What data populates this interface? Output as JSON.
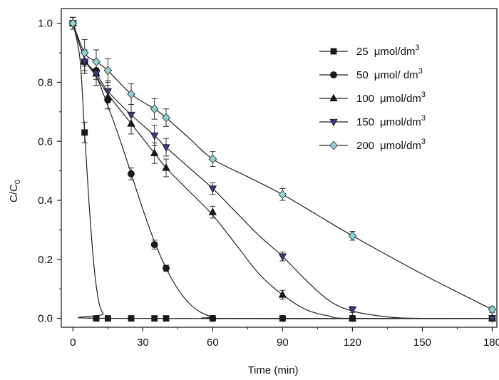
{
  "chart_data": {
    "type": "line",
    "xlabel": "Time (min)",
    "ylabel": {
      "main": "C/C",
      "sub": "0"
    },
    "xlim": [
      -5,
      182
    ],
    "ylim": [
      -0.03,
      1.05
    ],
    "x_ticks": [
      "0",
      "30",
      "60",
      "90",
      "120",
      "150",
      "180"
    ],
    "y_ticks": [
      "0.0",
      "0.2",
      "0.4",
      "0.6",
      "0.8",
      "1.0"
    ],
    "grid": false,
    "legend_position": "top-right",
    "series": [
      {
        "name": "25",
        "unit": "μmol/dm",
        "sup": "3",
        "marker": "square",
        "color": "#1a1a1a",
        "points": [
          [
            0,
            1.0
          ],
          [
            5,
            0.63
          ],
          [
            10,
            0.0
          ],
          [
            15,
            0.0
          ],
          [
            25,
            0.0
          ],
          [
            35,
            0.0
          ],
          [
            40,
            0.0
          ],
          [
            60,
            0.0
          ],
          [
            90,
            0.0
          ],
          [
            120,
            0.0
          ],
          [
            180,
            0.0
          ]
        ],
        "errors": [
          0.02,
          0.035,
          0.0,
          0.0,
          0.0,
          0.0,
          0.0,
          0.0,
          0.0,
          0.0,
          0.0
        ],
        "curve": [
          [
            0,
            1.0
          ],
          [
            3,
            0.88
          ],
          [
            5,
            0.63
          ],
          [
            7,
            0.38
          ],
          [
            9,
            0.18
          ],
          [
            11,
            0.06
          ],
          [
            13,
            0.015
          ],
          [
            15,
            0.0
          ],
          [
            180,
            0.0
          ]
        ]
      },
      {
        "name": "50",
        "unit": "μmol/ dm",
        "sup": "3",
        "marker": "circle",
        "color": "#1a1a1a",
        "points": [
          [
            0,
            1.0
          ],
          [
            5,
            0.87
          ],
          [
            10,
            0.84
          ],
          [
            15,
            0.74
          ],
          [
            25,
            0.49
          ],
          [
            35,
            0.25
          ],
          [
            40,
            0.17
          ],
          [
            60,
            0.0
          ],
          [
            90,
            0.0
          ],
          [
            120,
            0.0
          ],
          [
            180,
            0.0
          ]
        ],
        "errors": [
          0.02,
          0.03,
          0.03,
          0.03,
          0.02,
          0.015,
          0.01,
          0.0,
          0.0,
          0.0,
          0.0
        ],
        "curve": [
          [
            0,
            1.0
          ],
          [
            5,
            0.88
          ],
          [
            10,
            0.82
          ],
          [
            15,
            0.72
          ],
          [
            20,
            0.61
          ],
          [
            25,
            0.49
          ],
          [
            30,
            0.37
          ],
          [
            35,
            0.26
          ],
          [
            40,
            0.17
          ],
          [
            45,
            0.1
          ],
          [
            50,
            0.05
          ],
          [
            55,
            0.02
          ],
          [
            60,
            0.005
          ],
          [
            65,
            0.0
          ],
          [
            180,
            0.0
          ]
        ]
      },
      {
        "name": "100",
        "unit": "μmol/dm",
        "sup": "3",
        "marker": "triangle-up",
        "color": "#1a1a1a",
        "points": [
          [
            0,
            1.0
          ],
          [
            5,
            0.87
          ],
          [
            10,
            0.83
          ],
          [
            15,
            0.75
          ],
          [
            25,
            0.66
          ],
          [
            35,
            0.56
          ],
          [
            40,
            0.51
          ],
          [
            60,
            0.36
          ],
          [
            90,
            0.08
          ],
          [
            120,
            0.0
          ],
          [
            180,
            0.0
          ]
        ],
        "errors": [
          0.02,
          0.04,
          0.04,
          0.04,
          0.035,
          0.035,
          0.03,
          0.02,
          0.015,
          0.0,
          0.0
        ],
        "curve": [
          [
            0,
            1.0
          ],
          [
            5,
            0.88
          ],
          [
            10,
            0.82
          ],
          [
            15,
            0.76
          ],
          [
            25,
            0.66
          ],
          [
            35,
            0.56
          ],
          [
            40,
            0.51
          ],
          [
            50,
            0.43
          ],
          [
            60,
            0.35
          ],
          [
            70,
            0.25
          ],
          [
            80,
            0.15
          ],
          [
            90,
            0.08
          ],
          [
            100,
            0.03
          ],
          [
            110,
            0.008
          ],
          [
            120,
            0.0
          ],
          [
            180,
            0.0
          ]
        ]
      },
      {
        "name": "150",
        "unit": "μmol/dm",
        "sup": "3",
        "marker": "triangle-down",
        "color": "#3a3a8c",
        "points": [
          [
            0,
            1.0
          ],
          [
            5,
            0.87
          ],
          [
            10,
            0.83
          ],
          [
            15,
            0.77
          ],
          [
            25,
            0.69
          ],
          [
            35,
            0.62
          ],
          [
            40,
            0.58
          ],
          [
            60,
            0.44
          ],
          [
            90,
            0.21
          ],
          [
            120,
            0.03
          ],
          [
            180,
            0.0
          ]
        ],
        "errors": [
          0.02,
          0.04,
          0.04,
          0.035,
          0.035,
          0.035,
          0.03,
          0.02,
          0.015,
          0.01,
          0.0
        ],
        "curve": [
          [
            0,
            1.0
          ],
          [
            5,
            0.88
          ],
          [
            10,
            0.83
          ],
          [
            15,
            0.77
          ],
          [
            25,
            0.69
          ],
          [
            35,
            0.62
          ],
          [
            40,
            0.58
          ],
          [
            50,
            0.51
          ],
          [
            60,
            0.44
          ],
          [
            70,
            0.36
          ],
          [
            80,
            0.28
          ],
          [
            90,
            0.21
          ],
          [
            100,
            0.13
          ],
          [
            110,
            0.06
          ],
          [
            120,
            0.025
          ],
          [
            135,
            0.005
          ],
          [
            150,
            0.0
          ],
          [
            180,
            0.0
          ]
        ]
      },
      {
        "name": "200",
        "unit": "μmol/dm",
        "sup": "3",
        "marker": "diamond",
        "color": "#8fd3d3",
        "points": [
          [
            0,
            1.0
          ],
          [
            5,
            0.9
          ],
          [
            10,
            0.87
          ],
          [
            15,
            0.84
          ],
          [
            25,
            0.76
          ],
          [
            35,
            0.71
          ],
          [
            40,
            0.68
          ],
          [
            60,
            0.54
          ],
          [
            90,
            0.42
          ],
          [
            120,
            0.28
          ],
          [
            180,
            0.03
          ]
        ],
        "errors": [
          0.02,
          0.045,
          0.04,
          0.04,
          0.035,
          0.035,
          0.03,
          0.025,
          0.02,
          0.015,
          0.01
        ],
        "curve": [
          [
            0,
            1.0
          ],
          [
            5,
            0.9
          ],
          [
            10,
            0.87
          ],
          [
            15,
            0.84
          ],
          [
            25,
            0.76
          ],
          [
            35,
            0.71
          ],
          [
            40,
            0.68
          ],
          [
            50,
            0.61
          ],
          [
            60,
            0.54
          ],
          [
            75,
            0.48
          ],
          [
            90,
            0.42
          ],
          [
            105,
            0.35
          ],
          [
            120,
            0.28
          ],
          [
            150,
            0.15
          ],
          [
            180,
            0.03
          ]
        ]
      }
    ]
  }
}
